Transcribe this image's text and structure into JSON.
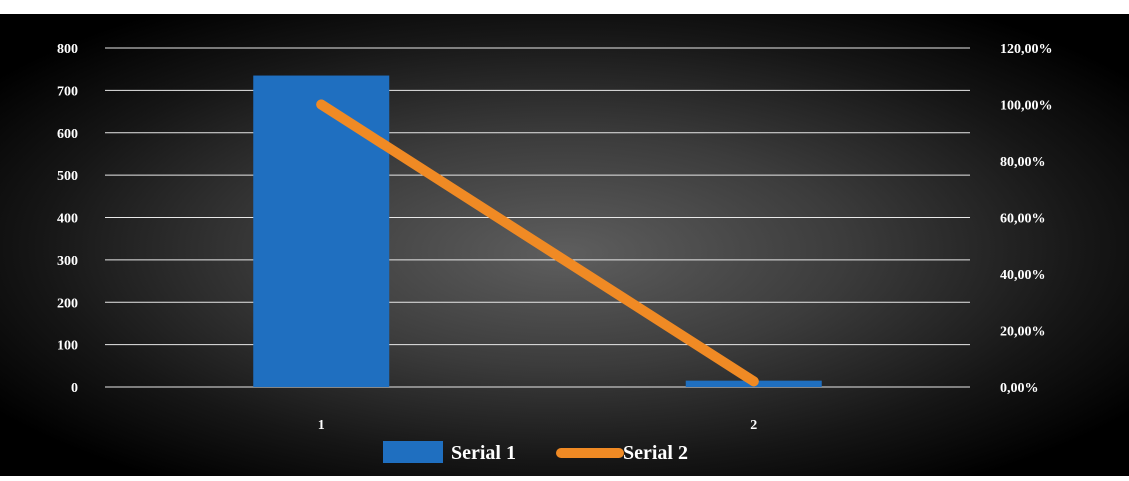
{
  "chart_data": {
    "type": "bar",
    "categories": [
      "1",
      "2"
    ],
    "series": [
      {
        "name": "Serial 1",
        "type": "bar",
        "axis": "left",
        "values": [
          735,
          15
        ],
        "color": "#1F6FC0"
      },
      {
        "name": "Serial 2",
        "type": "line",
        "axis": "right",
        "values": [
          1.0,
          0.02
        ],
        "color": "#F08A24"
      }
    ],
    "title": "",
    "xlabel": "",
    "ylabel": "",
    "ylim": [
      0,
      800
    ],
    "yticks": [
      "0",
      "100",
      "200",
      "300",
      "400",
      "500",
      "600",
      "700",
      "800"
    ],
    "y2lim": [
      0,
      1.2
    ],
    "y2ticks": [
      "0,00%",
      "20,00%",
      "40,00%",
      "60,00%",
      "80,00%",
      "100,00%",
      "120,00%"
    ],
    "grid": true,
    "legend": "bottom",
    "background": "radial gradient dark grey to black"
  }
}
